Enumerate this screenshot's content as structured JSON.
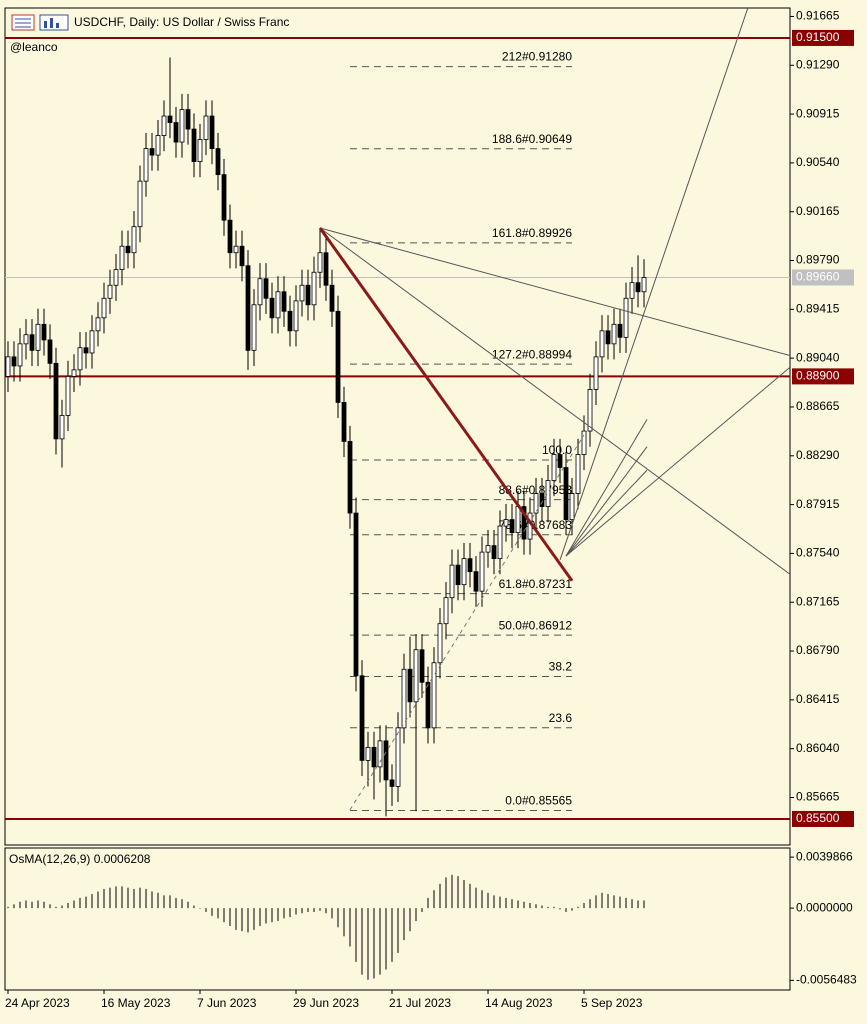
{
  "chart_data": [
    {
      "type": "candlestick",
      "title": "USDCHF, Daily:  US Dollar / Swiss Franc",
      "subtitle": "@leanco",
      "open": [
        0.889,
        0.8905,
        0.8898,
        0.8915,
        0.8922,
        0.891,
        0.893,
        0.8918,
        0.89,
        0.8842,
        0.886,
        0.889,
        0.8895,
        0.8912,
        0.8908,
        0.8925,
        0.8935,
        0.895,
        0.896,
        0.8972,
        0.899,
        0.8985,
        0.9005,
        0.904,
        0.9065,
        0.906,
        0.9075,
        0.909,
        0.9085,
        0.907,
        0.9095,
        0.908,
        0.9055,
        0.9072,
        0.909,
        0.9065,
        0.9045,
        0.901,
        0.8985,
        0.899,
        0.8975,
        0.891,
        0.8945,
        0.8965,
        0.895,
        0.8935,
        0.8955,
        0.894,
        0.8925,
        0.8948,
        0.896,
        0.8945,
        0.897,
        0.8985,
        0.896,
        0.894,
        0.887,
        0.884,
        0.8785,
        0.866,
        0.8595,
        0.8605,
        0.859,
        0.861,
        0.858,
        0.8575,
        0.862,
        0.8665,
        0.864,
        0.868,
        0.8655,
        0.862,
        0.867,
        0.87,
        0.872,
        0.8745,
        0.873,
        0.875,
        0.874,
        0.8725,
        0.8755,
        0.876,
        0.875,
        0.8775,
        0.878,
        0.877,
        0.879,
        0.8765,
        0.8785,
        0.88,
        0.879,
        0.881,
        0.883,
        0.882,
        0.878,
        0.88,
        0.883,
        0.8848,
        0.888,
        0.8905,
        0.8925,
        0.8915,
        0.893,
        0.892,
        0.895,
        0.8962,
        0.8955
      ],
      "high": [
        0.8917,
        0.8917,
        0.8927,
        0.8934,
        0.8934,
        0.8942,
        0.8942,
        0.893,
        0.8912,
        0.8872,
        0.8902,
        0.8907,
        0.8924,
        0.8924,
        0.8937,
        0.8947,
        0.8962,
        0.8972,
        0.8984,
        0.9002,
        0.9002,
        0.9017,
        0.9052,
        0.9077,
        0.9077,
        0.9087,
        0.9102,
        0.9135,
        0.9097,
        0.9107,
        0.9107,
        0.9092,
        0.9084,
        0.9102,
        0.9102,
        0.9077,
        0.9057,
        0.9022,
        0.9002,
        0.9002,
        0.8987,
        0.8957,
        0.8977,
        0.8977,
        0.8962,
        0.8967,
        0.8967,
        0.8952,
        0.896,
        0.8972,
        0.8972,
        0.8982,
        0.9004,
        0.8997,
        0.8972,
        0.8952,
        0.8882,
        0.8852,
        0.8797,
        0.8672,
        0.8617,
        0.8617,
        0.8622,
        0.8622,
        0.8592,
        0.8632,
        0.8677,
        0.869,
        0.8692,
        0.8692,
        0.8667,
        0.8682,
        0.8712,
        0.8732,
        0.8757,
        0.8757,
        0.8762,
        0.8762,
        0.8752,
        0.8767,
        0.8772,
        0.8772,
        0.8787,
        0.8792,
        0.8792,
        0.8802,
        0.8802,
        0.8797,
        0.8812,
        0.8812,
        0.8822,
        0.8842,
        0.8842,
        0.8832,
        0.8812,
        0.8842,
        0.886,
        0.8892,
        0.8917,
        0.8937,
        0.8937,
        0.8942,
        0.8942,
        0.8962,
        0.8974,
        0.8983,
        0.898
      ],
      "low": [
        0.8878,
        0.8886,
        0.8886,
        0.8903,
        0.8898,
        0.8898,
        0.8906,
        0.8888,
        0.883,
        0.882,
        0.8848,
        0.8878,
        0.8883,
        0.8896,
        0.8896,
        0.8913,
        0.8923,
        0.8938,
        0.8948,
        0.896,
        0.8973,
        0.8973,
        0.8993,
        0.9028,
        0.9048,
        0.9048,
        0.9063,
        0.9073,
        0.9058,
        0.9058,
        0.9068,
        0.9043,
        0.9043,
        0.906,
        0.9053,
        0.9033,
        0.8998,
        0.8973,
        0.8973,
        0.8963,
        0.8895,
        0.8898,
        0.8933,
        0.8938,
        0.8923,
        0.8923,
        0.8928,
        0.8913,
        0.8913,
        0.8936,
        0.8933,
        0.8933,
        0.8958,
        0.8948,
        0.8928,
        0.8858,
        0.8828,
        0.8773,
        0.8648,
        0.8583,
        0.8575,
        0.8565,
        0.8578,
        0.8552,
        0.856,
        0.8563,
        0.8608,
        0.8628,
        0.8556,
        0.8643,
        0.8608,
        0.8608,
        0.8658,
        0.8688,
        0.8708,
        0.8718,
        0.8718,
        0.8728,
        0.8713,
        0.8713,
        0.8743,
        0.8738,
        0.8738,
        0.8763,
        0.8758,
        0.8758,
        0.8753,
        0.8753,
        0.8773,
        0.8778,
        0.8778,
        0.8798,
        0.8808,
        0.8768,
        0.8768,
        0.8788,
        0.8818,
        0.8836,
        0.8868,
        0.8893,
        0.8903,
        0.8903,
        0.8908,
        0.8908,
        0.8938,
        0.8943,
        0.8943
      ],
      "close": [
        0.8905,
        0.8898,
        0.8915,
        0.8922,
        0.891,
        0.893,
        0.8918,
        0.89,
        0.8842,
        0.886,
        0.889,
        0.8895,
        0.8912,
        0.8908,
        0.8925,
        0.8935,
        0.895,
        0.896,
        0.8972,
        0.899,
        0.8985,
        0.9005,
        0.904,
        0.9065,
        0.906,
        0.9075,
        0.909,
        0.9085,
        0.907,
        0.9095,
        0.908,
        0.9055,
        0.9072,
        0.909,
        0.9065,
        0.9045,
        0.901,
        0.8985,
        0.899,
        0.8975,
        0.891,
        0.8945,
        0.8965,
        0.895,
        0.8935,
        0.8955,
        0.894,
        0.8925,
        0.8948,
        0.896,
        0.8945,
        0.897,
        0.8985,
        0.896,
        0.894,
        0.887,
        0.884,
        0.8785,
        0.866,
        0.8595,
        0.8605,
        0.859,
        0.861,
        0.858,
        0.8575,
        0.862,
        0.8665,
        0.864,
        0.868,
        0.8655,
        0.862,
        0.867,
        0.87,
        0.872,
        0.8745,
        0.873,
        0.875,
        0.874,
        0.8725,
        0.8755,
        0.876,
        0.875,
        0.8775,
        0.878,
        0.877,
        0.879,
        0.8765,
        0.8785,
        0.88,
        0.879,
        0.881,
        0.883,
        0.882,
        0.878,
        0.88,
        0.883,
        0.8848,
        0.888,
        0.8905,
        0.8925,
        0.8915,
        0.893,
        0.892,
        0.895,
        0.8962,
        0.8955,
        0.8966
      ],
      "colors": {
        "up": "#ffffff",
        "down": "#000000",
        "outline": "#000000"
      },
      "xlim": [
        -0.5,
        130.33
      ],
      "xticks": [
        {
          "value": 0,
          "label": "24 Apr 2023"
        },
        {
          "value": 16,
          "label": "16 May 2023"
        },
        {
          "value": 32,
          "label": "7 Jun 2023"
        },
        {
          "value": 48,
          "label": "29 Jun 2023"
        },
        {
          "value": 64,
          "label": "21 Jul 2023"
        },
        {
          "value": 80,
          "label": "14 Aug 2023"
        },
        {
          "value": 96,
          "label": "5 Sep 2023"
        }
      ],
      "ylim": [
        0.853,
        0.9173
      ],
      "yticks": [
        0.91665,
        {
          "value": 0.9129,
          "label": "0.91290"
        },
        0.90915,
        {
          "value": 0.9054,
          "label": "0.90540"
        },
        0.90165,
        {
          "value": 0.8979,
          "label": "0.89790"
        },
        0.89415,
        {
          "value": 0.8904,
          "label": "0.89040"
        },
        0.88665,
        {
          "value": 0.8829,
          "label": "0.88290"
        },
        0.87915,
        {
          "value": 0.8754,
          "label": "0.87540"
        },
        0.87165,
        {
          "value": 0.8679,
          "label": "0.86790"
        },
        0.86415,
        {
          "value": 0.8604,
          "label": "0.86040"
        },
        0.85665
      ],
      "levels": [
        {
          "value": 0.915,
          "label": "0.91500",
          "color": "#8b0000"
        },
        {
          "value": 0.889,
          "label": "0.88900",
          "color": "#8b0000"
        },
        {
          "value": 0.855,
          "label": "0.85500",
          "color": "#8b0000"
        }
      ],
      "current": {
        "value": 0.8966,
        "label": "0.89660",
        "color": "#c0c0c0"
      },
      "fibo": {
        "x": [
          57,
          94
        ],
        "color": "#555555",
        "levels": [
          {
            "value": 0.9128,
            "label": "212#0.91280"
          },
          {
            "value": 0.90649,
            "label": "188.6#0.90649"
          },
          {
            "value": 0.89926,
            "label": "161.8#0.89926"
          },
          {
            "value": 0.88994,
            "label": "127.2#0.88994"
          },
          {
            "value": 0.88258,
            "label": "100.0"
          },
          {
            "value": 0.87953,
            "label": "88.6#0.87953"
          },
          {
            "value": 0.87683,
            "label": "78.6#0.87683"
          },
          {
            "value": 0.87231,
            "label": "61.8#0.87231"
          },
          {
            "value": 0.86912,
            "label": "50.0#0.86912"
          },
          {
            "value": 0.86594,
            "label": "38.2"
          },
          {
            "value": 0.86201,
            "label": "23.6"
          },
          {
            "value": 0.85565,
            "label": "0.0#0.85565"
          }
        ]
      },
      "trendlines": [
        {
          "x": [
            52,
            130.33
          ],
          "y": [
            0.9004,
            0.8906
          ],
          "color": "#555555",
          "width": 1,
          "style": "solid"
        },
        {
          "x": [
            52,
            130.33
          ],
          "y": [
            0.9004,
            0.8738
          ],
          "color": "#555555",
          "width": 1,
          "style": "solid"
        },
        {
          "x": [
            92,
            123.3
          ],
          "y": [
            0.8749,
            0.9173
          ],
          "color": "#555555",
          "width": 1,
          "style": "solid"
        },
        {
          "x": [
            93,
            130.33
          ],
          "y": [
            0.8752,
            0.8897
          ],
          "color": "#555555",
          "width": 1,
          "style": "solid"
        },
        {
          "x": [
            93,
            106.5
          ],
          "y": [
            0.8752,
            0.8857
          ],
          "color": "#555555",
          "width": 1,
          "style": "solid"
        },
        {
          "x": [
            93,
            106.5
          ],
          "y": [
            0.8752,
            0.8836
          ],
          "color": "#555555",
          "width": 1,
          "style": "solid"
        },
        {
          "x": [
            93,
            106.5
          ],
          "y": [
            0.8752,
            0.8818
          ],
          "color": "#555555",
          "width": 1,
          "style": "solid"
        },
        {
          "x": [
            57,
            96
          ],
          "y": [
            0.8557,
            0.8845
          ],
          "color": "#777777",
          "width": 1,
          "style": "dashed"
        },
        {
          "x": [
            52,
            94
          ],
          "y": [
            0.9004,
            0.8733
          ],
          "color": "#8b1a1a",
          "width": 3,
          "style": "solid"
        }
      ]
    },
    {
      "type": "bar",
      "title": "OsMA(12,26,9) 0.0006208",
      "values": [
        0.0001,
        0.0003,
        0.0005,
        0.0006,
        0.0005,
        0.0006,
        0.0005,
        0.0003,
        0.0001,
        0.0002,
        0.0004,
        0.0006,
        0.0008,
        0.0009,
        0.0011,
        0.0013,
        0.0015,
        0.0016,
        0.0017,
        0.0017,
        0.0016,
        0.0015,
        0.0016,
        0.0015,
        0.0013,
        0.0012,
        0.001,
        0.001,
        0.0008,
        0.0007,
        0.0005,
        0.0002,
        0.0,
        -0.0003,
        -0.0006,
        -0.0008,
        -0.0011,
        -0.0014,
        -0.0017,
        -0.0018,
        -0.0019,
        -0.0017,
        -0.0014,
        -0.0012,
        -0.0011,
        -0.001,
        -0.0008,
        -0.0007,
        -0.0005,
        -0.0004,
        -0.0003,
        -0.0003,
        -0.0002,
        -0.0004,
        -0.0008,
        -0.0015,
        -0.0022,
        -0.003,
        -0.0042,
        -0.0052,
        -0.0056,
        -0.0055,
        -0.0052,
        -0.0048,
        -0.0042,
        -0.0035,
        -0.0025,
        -0.0018,
        -0.001,
        -0.0003,
        0.0008,
        0.0014,
        0.0019,
        0.0024,
        0.0026,
        0.0025,
        0.0022,
        0.0019,
        0.0016,
        0.0014,
        0.0012,
        0.001,
        0.0009,
        0.0008,
        0.0007,
        0.0006,
        0.0005,
        0.0004,
        0.0003,
        0.0002,
        0.0001,
        0.0001,
        -0.0001,
        -0.0003,
        -0.0002,
        0.0001,
        0.0004,
        0.0007,
        0.001,
        0.0012,
        0.0011,
        0.001,
        0.0009,
        0.0008,
        0.0007,
        0.0006,
        0.0006
      ],
      "color": "#000000",
      "ylim": [
        -0.0064,
        0.0047
      ],
      "yticks": [
        {
          "value": 0.0039866,
          "label": "0.0039866"
        },
        {
          "value": 0,
          "label": "0.0000000"
        },
        {
          "value": -0.0056483,
          "label": "-0.0056483"
        }
      ]
    }
  ]
}
